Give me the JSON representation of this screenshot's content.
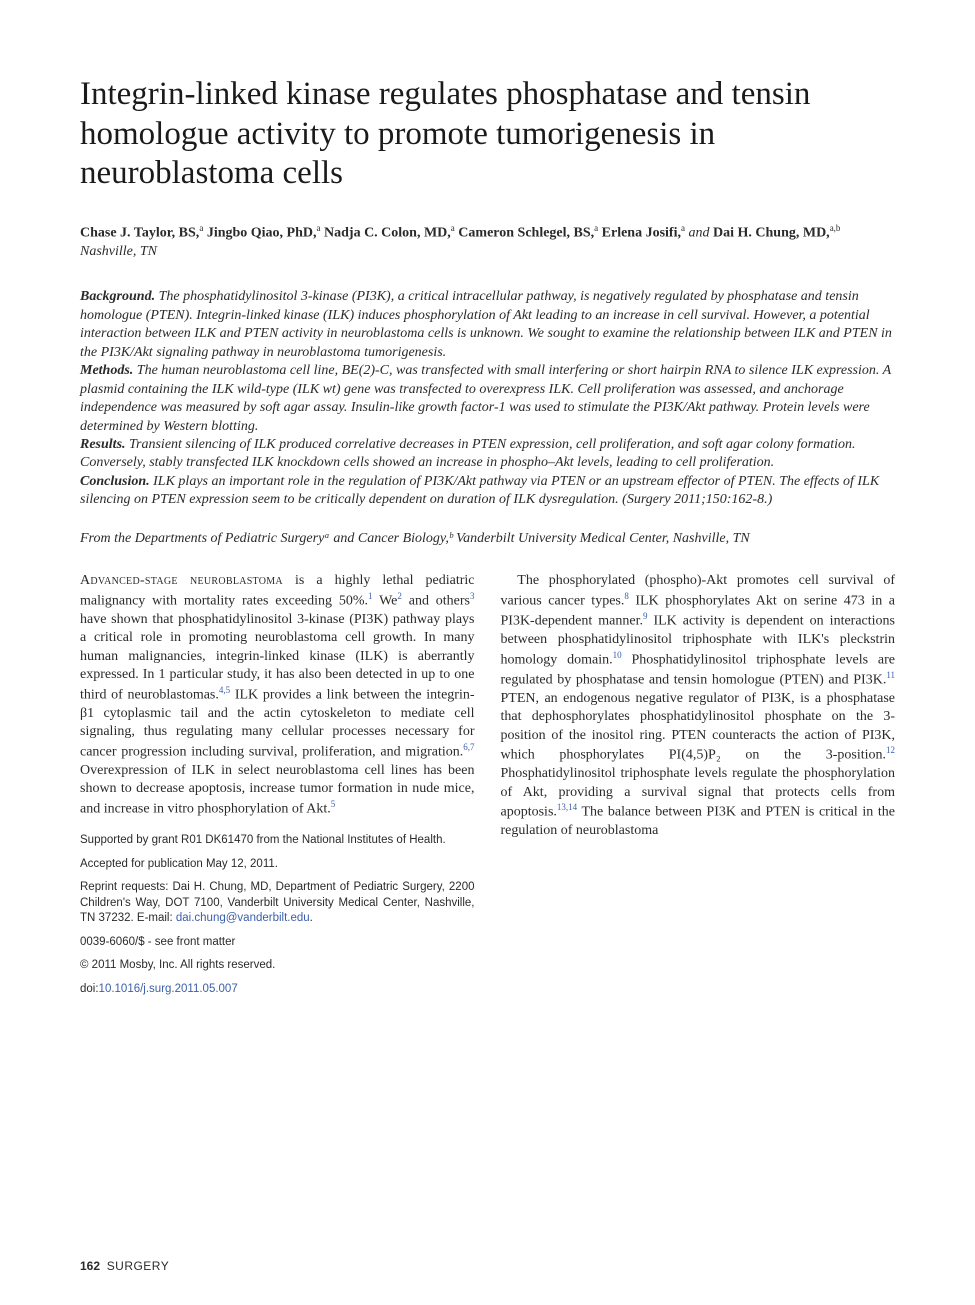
{
  "title": "Integrin-linked kinase regulates phosphatase and tensin homologue activity to promote tumorigenesis in neuroblastoma cells",
  "authors_html": "Chase J. Taylor, BS,<sup>a</sup> Jingbo Qiao, PhD,<sup>a</sup> Nadja C. Colon, MD,<sup>a</sup> Cameron Schlegel, BS,<sup>a</sup> Erlena Josifi,<sup>a</sup> <span class=\"loc\">and</span> Dai H. Chung, MD,<sup>a,b</sup> <span class=\"loc\">Nashville, TN</span>",
  "abstract": {
    "background": "The phosphatidylinositol 3-kinase (PI3K), a critical intracellular pathway, is negatively regulated by phosphatase and tensin homologue (PTEN). Integrin-linked kinase (ILK) induces phosphorylation of Akt leading to an increase in cell survival. However, a potential interaction between ILK and PTEN activity in neuroblastoma cells is unknown. We sought to examine the relationship between ILK and PTEN in the PI3K/Akt signaling pathway in neuroblastoma tumorigenesis.",
    "methods": "The human neuroblastoma cell line, BE(2)-C, was transfected with small interfering or short hairpin RNA to silence ILK expression. A plasmid containing the ILK wild-type (ILK wt) gene was transfected to overexpress ILK. Cell proliferation was assessed, and anchorage independence was measured by soft agar assay. Insulin-like growth factor-1 was used to stimulate the PI3K/Akt pathway. Protein levels were determined by Western blotting.",
    "results": "Transient silencing of ILK produced correlative decreases in PTEN expression, cell proliferation, and soft agar colony formation. Conversely, stably transfected ILK knockdown cells showed an increase in phospho–Akt levels, leading to cell proliferation.",
    "conclusion": "ILK plays an important role in the regulation of PI3K/Akt pathway via PTEN or an upstream effector of PTEN. The effects of ILK silencing on PTEN expression seem to be critically dependent on duration of ILK dysregulation. (Surgery 2011;150:162-8.)"
  },
  "affiliation": "From the Departments of Pediatric Surgeryᵃ and Cancer Biology,ᵇ Vanderbilt University Medical Center, Nashville, TN",
  "body": {
    "p1_html": "<span class=\"smallcaps\">Advanced-stage neuroblastoma</span> is a highly lethal pediatric malignancy with mortality rates exceeding 50%.<sup class=\"ref\">1</sup> We<sup class=\"ref\">2</sup> and others<sup class=\"ref\">3</sup> have shown that phosphatidylinositol 3-kinase (PI3K) pathway plays a critical role in promoting neuroblastoma cell growth. In many human malignancies, integrin-linked kinase (ILK) is aberrantly expressed. In 1 particular study, it has also been detected in up to one third of neuroblastomas.<sup class=\"ref\">4,5</sup> ILK provides a link between the integrin-β1 cytoplasmic tail and the actin cytoskeleton to mediate cell signaling, thus regulating many cellular processes necessary for cancer progression including survival, proliferation, and migration.<sup class=\"ref\">6,7</sup> Overexpression of ILK in select neuroblastoma cell lines has been shown to decrease apoptosis, increase tumor formation in nude mice, and increase in vitro phosphorylation of Akt.<sup class=\"ref\">5</sup>",
    "p2_html": "The phosphorylated (phospho)-Akt promotes cell survival of various cancer types.<sup class=\"ref\">8</sup> ILK phosphorylates Akt on serine 473 in a PI3K-dependent manner.<sup class=\"ref\">9</sup> ILK activity is dependent on interactions between phosphatidylinositol triphosphate with ILK's pleckstrin homology domain.<sup class=\"ref\">10</sup> Phosphatidylinositol triphosphate levels are regulated by phosphatase and tensin homologue (PTEN) and PI3K.<sup class=\"ref\">11</sup> PTEN, an endogenous negative regulator of PI3K, is a phosphatase that dephosphorylates phosphatidylinositol phosphate on the 3-position of the inositol ring. PTEN counteracts the action of PI3K, which phosphorylates PI(4,5)P₂ on the 3-position.<sup class=\"ref\">12</sup> Phosphatidylinositol triphosphate levels regulate the phosphorylation of Akt, providing a survival signal that protects cells from apoptosis.<sup class=\"ref\">13,14</sup> The balance between PI3K and PTEN is critical in the regulation of neuroblastoma"
  },
  "footnotes": {
    "grant": "Supported by grant R01 DK61470 from the National Institutes of Health.",
    "accepted": "Accepted for publication May 12, 2011.",
    "reprint_html": "Reprint requests: Dai H. Chung, MD, Department of Pediatric Surgery, 2200 Children's Way, DOT 7100, Vanderbilt University Medical Center, Nashville, TN 37232. E-mail: <a class=\"link\" href=\"#\">dai.chung@vanderbilt.edu</a>.",
    "issn": "0039-6060/$ - see front matter",
    "copyright": "© 2011 Mosby, Inc. All rights reserved.",
    "doi_label": "doi:",
    "doi": "10.1016/j.surg.2011.05.007"
  },
  "footer": {
    "page": "162",
    "journal": "SURGERY"
  },
  "colors": {
    "link": "#3b5fab",
    "text": "#2a2a2a",
    "bg": "#ffffff"
  }
}
